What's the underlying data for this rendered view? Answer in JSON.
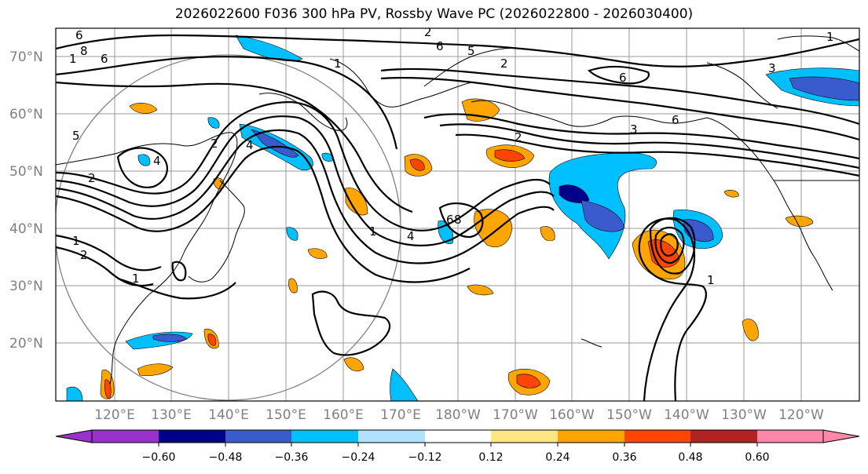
{
  "title": "2026022600 F036 300 hPa PV, Rossby Wave PC (2026022800 - 2026030400)",
  "lat_labels": [
    "70°N",
    "60°N",
    "50°N",
    "40°N",
    "30°N",
    "20°N"
  ],
  "lon_labels": [
    "120°E",
    "130°E",
    "140°E",
    "150°E",
    "160°E",
    "170°E",
    "180°W",
    "170°W",
    "160°W",
    "150°W",
    "140°W",
    "130°W",
    "120°W"
  ],
  "colorbar": {
    "ticks": [
      "−0.60",
      "−0.48",
      "−0.36",
      "−0.24",
      "−0.12",
      "0.12",
      "0.24",
      "0.36",
      "0.48",
      "0.60"
    ],
    "colors": [
      "#9932CC",
      "#00008B",
      "#3A5BCD",
      "#00BFFF",
      "#B0E2FF",
      "#FFFFFF",
      "#FFE680",
      "#FFA500",
      "#FF4500",
      "#B22222",
      "#FF88AA"
    ]
  },
  "contour_labels": [
    "6",
    "8",
    "1",
    "6",
    "5",
    "4",
    "2",
    "2",
    "2",
    "6",
    "6",
    "6",
    "3",
    "5",
    "2",
    "1",
    "4",
    "3",
    "1",
    "2",
    "1",
    "2",
    "1",
    "4",
    "6",
    "8",
    "1",
    "1"
  ]
}
